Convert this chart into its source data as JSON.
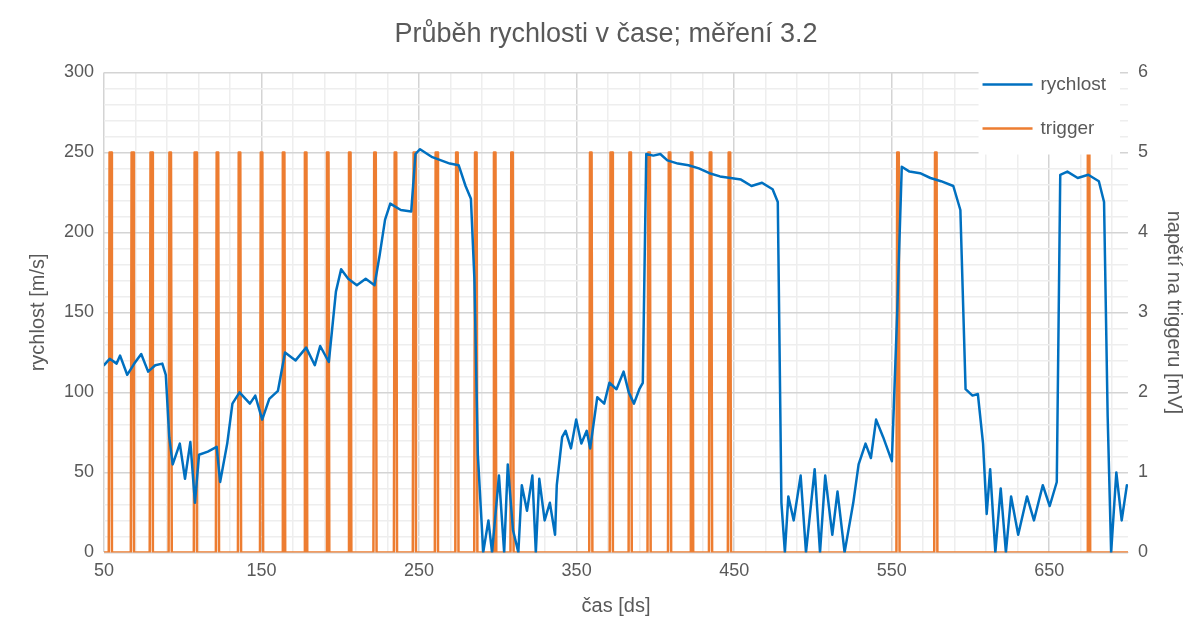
{
  "chart_data": {
    "type": "line",
    "title": "Průběh rychlosti v čase; měření 3.2",
    "xlabel": "čas [ds]",
    "ylabel": "rychlost [m/s]",
    "y2label": "napětí na triggeru [mV]",
    "xlim": [
      50,
      700
    ],
    "xticks": [
      50,
      {
        "value": 70,
        "label": null
      },
      {
        "value": 90,
        "label": null
      },
      {
        "value": 110,
        "label": null
      },
      {
        "value": 130,
        "label": null
      },
      150,
      {
        "value": 170,
        "label": null
      },
      {
        "value": 190,
        "label": null
      },
      {
        "value": 210,
        "label": null
      },
      {
        "value": 230,
        "label": null
      },
      250,
      {
        "value": 270,
        "label": null
      },
      {
        "value": 290,
        "label": null
      },
      {
        "value": 310,
        "label": null
      },
      {
        "value": 330,
        "label": null
      },
      350,
      {
        "value": 370,
        "label": null
      },
      {
        "value": 390,
        "label": null
      },
      {
        "value": 410,
        "label": null
      },
      {
        "value": 430,
        "label": null
      },
      450,
      {
        "value": 470,
        "label": null
      },
      {
        "value": 490,
        "label": null
      },
      {
        "value": 510,
        "label": null
      },
      {
        "value": 530,
        "label": null
      },
      550,
      {
        "value": 570,
        "label": null
      },
      {
        "value": 590,
        "label": null
      },
      {
        "value": 610,
        "label": null
      },
      {
        "value": 630,
        "label": null
      },
      650,
      {
        "value": 670,
        "label": null
      },
      {
        "value": 690,
        "label": null
      }
    ],
    "ylim": [
      0,
      300
    ],
    "yticks": [
      0,
      {
        "value": 10,
        "label": null
      },
      {
        "value": 20,
        "label": null
      },
      {
        "value": 30,
        "label": null
      },
      {
        "value": 40,
        "label": null
      },
      50,
      {
        "value": 60,
        "label": null
      },
      {
        "value": 70,
        "label": null
      },
      {
        "value": 80,
        "label": null
      },
      {
        "value": 90,
        "label": null
      },
      100,
      {
        "value": 110,
        "label": null
      },
      {
        "value": 120,
        "label": null
      },
      {
        "value": 130,
        "label": null
      },
      {
        "value": 140,
        "label": null
      },
      150,
      {
        "value": 160,
        "label": null
      },
      {
        "value": 170,
        "label": null
      },
      {
        "value": 180,
        "label": null
      },
      {
        "value": 190,
        "label": null
      },
      200,
      {
        "value": 210,
        "label": null
      },
      {
        "value": 220,
        "label": null
      },
      {
        "value": 230,
        "label": null
      },
      {
        "value": 240,
        "label": null
      },
      250,
      {
        "value": 260,
        "label": null
      },
      {
        "value": 270,
        "label": null
      },
      {
        "value": 280,
        "label": null
      },
      {
        "value": 290,
        "label": null
      },
      300
    ],
    "y2lim": [
      0,
      6
    ],
    "y2ticks": [
      0,
      1,
      2,
      3,
      4,
      5,
      6
    ],
    "grid": true,
    "legend": "top right",
    "marker": "none",
    "line_style": "solid",
    "series": [
      {
        "name": "rychlost",
        "color": "#0070c0",
        "x": [
          50,
          53.6,
          58,
          60.2,
          64.7,
          69.2,
          73.6,
          78,
          82.5,
          87,
          89.2,
          91.4,
          93.6,
          98.1,
          101.4,
          104.8,
          107.7,
          110.3,
          115.9,
          121.5,
          123.7,
          128.2,
          131.5,
          136,
          142.6,
          146,
          150.4,
          154.9,
          160.4,
          164.9,
          171.6,
          178.3,
          183.8,
          187.2,
          192.7,
          197.2,
          200.5,
          205,
          210.5,
          216.1,
          221.7,
          225,
          228.4,
          231.7,
          238.4,
          245,
          247.7,
          250.6,
          258.4,
          269.5,
          275.1,
          279.5,
          282.9,
          285.1,
          287.3,
          289.6,
          290.7,
          294,
          296.3,
          300.7,
          304,
          306.3,
          309.6,
          313,
          315.2,
          318.5,
          321.9,
          324.1,
          326.3,
          329.7,
          333,
          336.3,
          337.4,
          340.8,
          343,
          346.4,
          349.7,
          353,
          356.4,
          358.6,
          363.1,
          367.5,
          370.8,
          375.3,
          379.8,
          383.1,
          386.4,
          389.8,
          392,
          394.2,
          398.7,
          403.1,
          407.6,
          414.3,
          421,
          427.6,
          434.3,
          441,
          447.7,
          454.3,
          461,
          467.7,
          474.4,
          477.7,
          480,
          482.2,
          484.4,
          487.8,
          492.2,
          495.6,
          501.1,
          504.5,
          507.8,
          512.3,
          515.6,
          520.1,
          525.6,
          529,
          533.4,
          536.8,
          540.1,
          544.6,
          550.1,
          553.5,
          556.4,
          561.3,
          568,
          574.6,
          581.3,
          589.1,
          593.6,
          596.9,
          601.3,
          604.7,
          608,
          610.3,
          612.5,
          615.8,
          619.2,
          622.5,
          625.8,
          630.3,
          635.9,
          640.3,
          645.9,
          650.3,
          654.8,
          657,
          661.5,
          668.1,
          674.8,
          681.5,
          684.8,
          687.1,
          689.3,
          692.6,
          696,
          699.3
        ],
        "values": [
          117,
          121,
          118,
          123,
          111,
          118,
          124,
          113,
          117,
          118,
          111,
          72,
          55,
          68,
          46,
          69,
          31,
          61,
          63,
          66,
          44,
          68,
          93,
          100,
          93,
          98,
          83,
          96,
          101,
          125,
          120,
          128,
          117,
          129,
          119,
          163,
          177,
          171,
          167,
          171,
          167,
          186,
          208,
          218,
          214,
          213,
          249,
          252,
          247,
          243,
          242,
          229,
          221,
          171,
          61,
          20,
          0,
          20,
          0,
          48,
          0,
          55,
          14,
          0,
          42,
          26,
          48,
          0,
          46,
          20,
          31,
          11,
          42,
          72,
          76,
          65,
          83,
          68,
          76,
          65,
          97,
          93,
          106,
          102,
          113,
          100,
          93,
          102,
          106,
          249,
          248,
          249,
          245,
          243,
          242,
          240,
          237,
          235,
          234,
          233,
          229,
          231,
          227,
          219,
          31,
          0,
          35,
          20,
          48,
          0,
          52,
          0,
          48,
          11,
          38,
          0,
          31,
          55,
          68,
          59,
          83,
          72,
          57,
          150,
          241,
          238,
          237,
          234,
          232,
          229,
          214,
          102,
          98,
          99,
          68,
          24,
          52,
          0,
          40,
          0,
          35,
          11,
          35,
          20,
          42,
          29,
          44,
          236,
          238,
          234,
          236,
          232,
          219,
          85,
          0,
          50,
          20,
          42
        ]
      },
      {
        "name": "trigger",
        "color": "#ed7d31",
        "axis": "y2",
        "x": [
          50,
          53,
          53.5,
          54.5,
          55,
          67,
          67.5,
          68.5,
          69,
          79,
          79.5,
          80.5,
          81,
          91,
          91.5,
          92.5,
          93,
          107,
          107.5,
          108.5,
          109,
          121,
          121.5,
          122.5,
          123,
          135,
          135.5,
          136.5,
          137,
          149,
          149.5,
          150.5,
          151,
          163,
          163.5,
          164.5,
          165,
          177,
          177.5,
          178.5,
          179,
          191,
          191.5,
          192.5,
          193,
          205,
          205.5,
          206.5,
          207,
          221,
          221.5,
          222.5,
          223,
          234,
          234.5,
          235.5,
          236,
          246,
          246.5,
          247.5,
          248,
          260,
          260.5,
          261.5,
          262,
          273,
          273.5,
          274.5,
          275,
          285,
          285.5,
          286.5,
          287,
          297,
          297.5,
          298.5,
          299,
          308,
          308.5,
          309.5,
          310,
          358,
          358.5,
          359.5,
          360,
          371,
          371.5,
          372.5,
          373,
          383,
          383.5,
          384.5,
          385,
          395,
          395.5,
          396.5,
          397,
          408,
          408.5,
          409.5,
          410,
          422,
          422.5,
          423.5,
          424,
          434,
          434.5,
          435.5,
          436,
          446,
          446.5,
          447.5,
          448,
          553,
          553.5,
          554.5,
          555,
          577,
          577.5,
          578.5,
          579,
          674,
          674.5,
          675.5,
          676,
          700
        ],
        "values": [
          0,
          0,
          5,
          5,
          0,
          0,
          5,
          5,
          0,
          0,
          5,
          5,
          0,
          0,
          5,
          5,
          0,
          0,
          5,
          5,
          0,
          0,
          5,
          5,
          0,
          0,
          5,
          5,
          0,
          0,
          5,
          5,
          0,
          0,
          5,
          5,
          0,
          0,
          5,
          5,
          0,
          0,
          5,
          5,
          0,
          0,
          5,
          5,
          0,
          0,
          5,
          5,
          0,
          0,
          5,
          5,
          0,
          0,
          5,
          5,
          0,
          0,
          5,
          5,
          0,
          0,
          5,
          5,
          0,
          0,
          5,
          5,
          0,
          0,
          5,
          5,
          0,
          0,
          5,
          5,
          0,
          0,
          5,
          5,
          0,
          0,
          5,
          5,
          0,
          0,
          5,
          5,
          0,
          0,
          5,
          5,
          0,
          0,
          5,
          5,
          0,
          0,
          5,
          5,
          0,
          0,
          5,
          5,
          0,
          0,
          5,
          5,
          0,
          0,
          5,
          5,
          0,
          0,
          5,
          5,
          0,
          0,
          5,
          5,
          0,
          0
        ]
      }
    ]
  }
}
